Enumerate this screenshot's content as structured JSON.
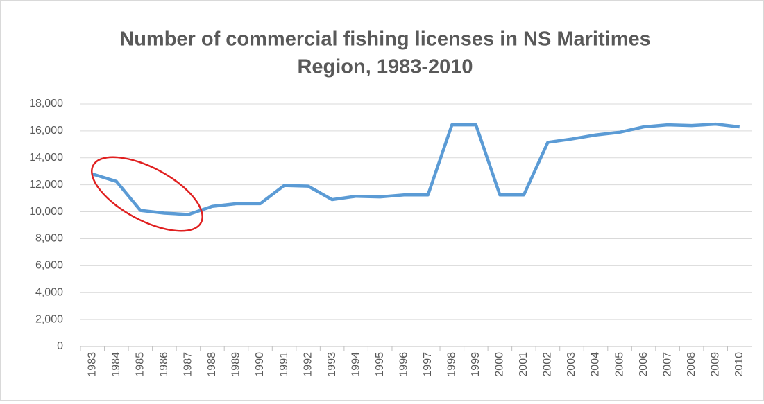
{
  "chart_data": {
    "type": "line",
    "title": [
      "Number of commercial fishing licenses  in NS Maritimes",
      "Region, 1983-2010"
    ],
    "categories": [
      "1983",
      "1984",
      "1985",
      "1986",
      "1987",
      "1988",
      "1989",
      "1990",
      "1991",
      "1992",
      "1993",
      "1994",
      "1995",
      "1996",
      "1997",
      "1998",
      "1999",
      "2000",
      "2001",
      "2002",
      "2003",
      "2004",
      "2005",
      "2006",
      "2007",
      "2008",
      "2009",
      "2010"
    ],
    "series": [
      {
        "name": "Licenses",
        "color": "#5b9bd5",
        "values": [
          12800,
          12250,
          10100,
          9900,
          9800,
          10400,
          10600,
          10600,
          11950,
          11900,
          10900,
          11150,
          11100,
          11250,
          11250,
          16450,
          16450,
          11250,
          11250,
          15150,
          15400,
          15700,
          15900,
          16300,
          16450,
          16400,
          16500,
          16300
        ]
      }
    ],
    "ylim": [
      0,
      18000
    ],
    "yticks": [
      0,
      {
        "value": 2000,
        "label": "2,000"
      },
      {
        "value": 4000,
        "label": "4,000"
      },
      {
        "value": 6000,
        "label": "6,000"
      },
      {
        "value": 8000,
        "label": "8,000"
      },
      {
        "value": 10000,
        "label": "10,000"
      },
      {
        "value": 12000,
        "label": "12,000"
      },
      {
        "value": 14000,
        "label": "14,000"
      },
      {
        "value": 16000,
        "label": "16,000"
      },
      {
        "value": 18000,
        "label": "18,000"
      }
    ],
    "grid": true
  }
}
